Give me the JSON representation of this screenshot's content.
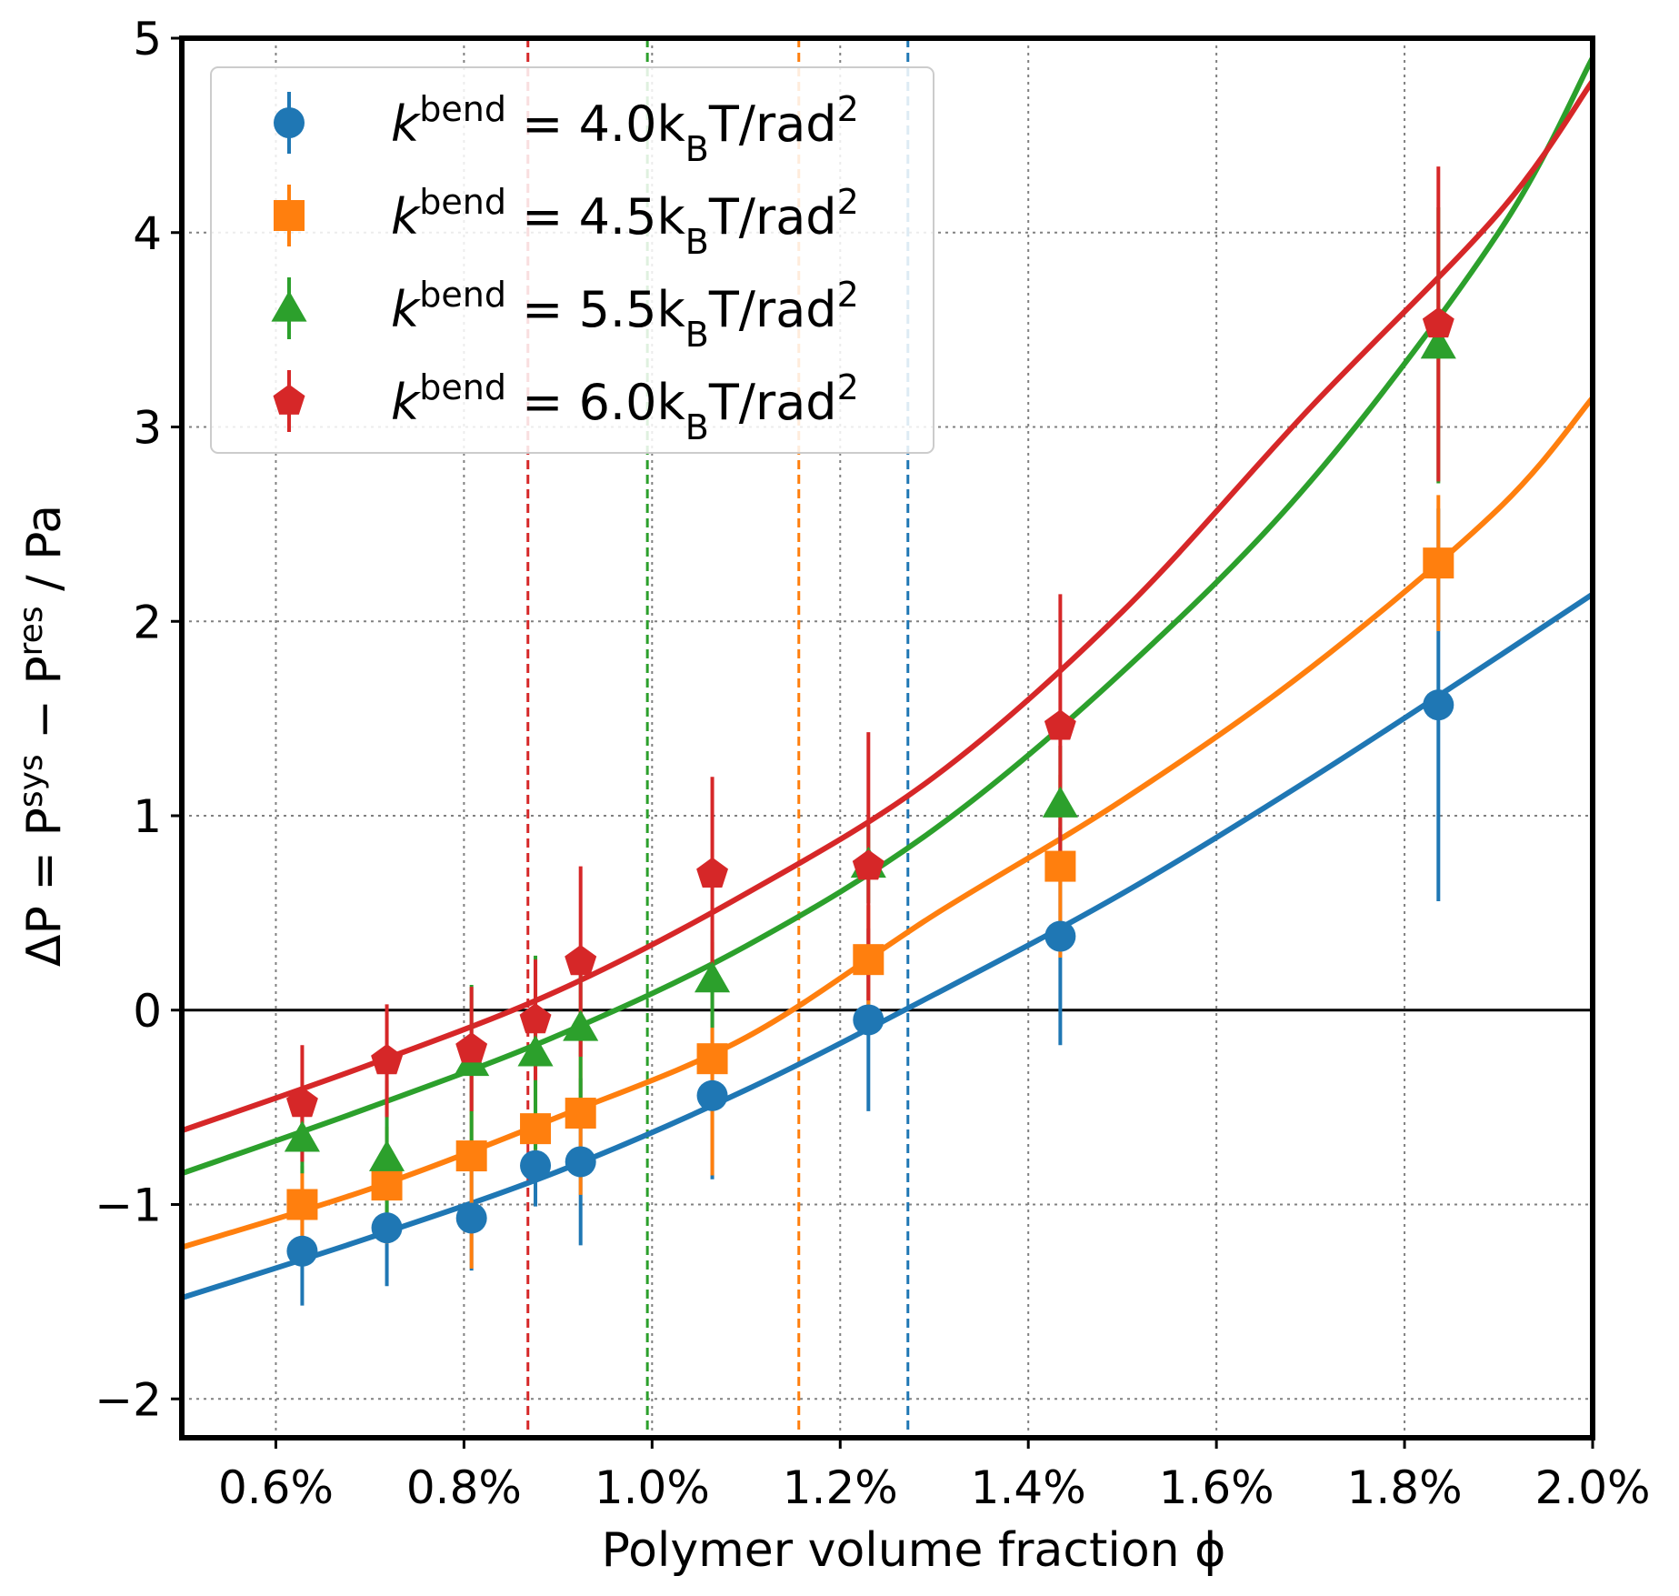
{
  "chart_data": {
    "type": "scatter",
    "title": "",
    "xlabel": "Polymer volume fraction ϕ",
    "ylabel_parts": [
      "ΔP = P",
      "sys",
      " − P",
      "res",
      " / Pa"
    ],
    "xlim": [
      0.5,
      2.0
    ],
    "ylim": [
      -2.2,
      5.0
    ],
    "x_ticks": [
      0.6,
      0.8,
      1.0,
      1.2,
      1.4,
      1.6,
      1.8,
      2.0
    ],
    "x_tick_labels": [
      "0.6%",
      "0.8%",
      "1.0%",
      "1.2%",
      "1.4%",
      "1.6%",
      "1.8%",
      "2.0%"
    ],
    "y_ticks": [
      -2,
      -1,
      0,
      1,
      2,
      3,
      4,
      5
    ],
    "y_tick_labels": [
      "−2",
      "−1",
      "0",
      "1",
      "2",
      "3",
      "4",
      "5"
    ],
    "grid": true,
    "legend_position": "top-left",
    "series": [
      {
        "name": "k^bend = 4.0 k_B T/rad^2",
        "legend": {
          "pre": "k",
          "sup": "bend",
          "mid": " = 4.0k",
          "sub": "B",
          "post": "T/rad",
          "sup2": "2"
        },
        "marker": "circle",
        "color": "#1f77b4",
        "x": [
          0.628,
          0.718,
          0.808,
          0.876,
          0.924,
          1.064,
          1.23,
          1.434,
          1.836
        ],
        "y": [
          -1.24,
          -1.12,
          -1.07,
          -0.8,
          -0.78,
          -0.44,
          -0.05,
          0.38,
          1.57
        ],
        "err": [
          0.28,
          0.3,
          0.27,
          0.21,
          0.43,
          0.43,
          0.47,
          0.56,
          1.01
        ],
        "fit_x": [
          0.5,
          0.7,
          0.9,
          1.1,
          1.3,
          1.5,
          1.7,
          1.9,
          2.0
        ],
        "fit_y": [
          -1.48,
          -1.17,
          -0.83,
          -0.41,
          0.08,
          0.6,
          1.19,
          1.82,
          2.14
        ],
        "zero_crossing": 1.272
      },
      {
        "name": "k^bend = 4.5 k_B T/rad^2",
        "legend": {
          "pre": "k",
          "sup": "bend",
          "mid": " = 4.5k",
          "sub": "B",
          "post": "T/rad",
          "sup2": "2"
        },
        "marker": "square",
        "color": "#ff7f0e",
        "x": [
          0.628,
          0.718,
          0.808,
          0.876,
          0.924,
          1.064,
          1.23,
          1.434,
          1.836
        ],
        "y": [
          -1.0,
          -0.9,
          -0.75,
          -0.61,
          -0.53,
          -0.25,
          0.26,
          0.74,
          2.3
        ],
        "err": [
          0.2,
          0.3,
          0.58,
          0.25,
          0.42,
          0.6,
          0.28,
          0.47,
          0.35
        ],
        "fit_x": [
          0.5,
          0.7,
          0.9,
          1.1,
          1.3,
          1.5,
          1.7,
          1.9,
          2.0
        ],
        "fit_y": [
          -1.22,
          -0.92,
          -0.55,
          -0.14,
          0.49,
          1.08,
          1.76,
          2.58,
          3.15
        ],
        "zero_crossing": 1.156
      },
      {
        "name": "k^bend = 5.5 k_B T/rad^2",
        "legend": {
          "pre": "k",
          "sup": "bend",
          "mid": " = 5.5k",
          "sub": "B",
          "post": "T/rad",
          "sup2": "2"
        },
        "marker": "triangle",
        "color": "#2ca02c",
        "x": [
          0.628,
          0.718,
          0.808,
          0.876,
          0.924,
          1.064,
          1.23,
          1.434,
          1.836
        ],
        "y": [
          -0.66,
          -0.76,
          -0.27,
          -0.22,
          -0.09,
          0.16,
          0.75,
          1.06,
          3.42
        ],
        "err": [
          0.18,
          0.4,
          0.4,
          0.5,
          0.41,
          0.25,
          0.2,
          0.3,
          0.71
        ],
        "fit_x": [
          0.5,
          0.7,
          0.9,
          1.1,
          1.3,
          1.5,
          1.7,
          1.9,
          2.0
        ],
        "fit_y": [
          -0.84,
          -0.5,
          -0.13,
          0.33,
          0.93,
          1.74,
          2.72,
          4.0,
          4.9
        ],
        "zero_crossing": 0.995
      },
      {
        "name": "k^bend = 6.0 k_B T/rad^2",
        "legend": {
          "pre": "k",
          "sup": "bend",
          "mid": " = 6.0k",
          "sub": "B",
          "post": "T/rad",
          "sup2": "2"
        },
        "marker": "pentagon",
        "color": "#d62728",
        "x": [
          0.628,
          0.718,
          0.808,
          0.876,
          0.924,
          1.064,
          1.23,
          1.434,
          1.836
        ],
        "y": [
          -0.48,
          -0.26,
          -0.2,
          -0.05,
          0.25,
          0.7,
          0.74,
          1.46,
          3.53
        ],
        "err": [
          0.3,
          0.29,
          0.32,
          0.31,
          0.49,
          0.5,
          0.69,
          0.68,
          0.81
        ],
        "fit_x": [
          0.5,
          0.7,
          0.9,
          1.1,
          1.3,
          1.5,
          1.7,
          1.9,
          2.0
        ],
        "fit_y": [
          -0.62,
          -0.28,
          0.1,
          0.6,
          1.2,
          2.05,
          3.1,
          4.1,
          4.78
        ],
        "zero_crossing": 0.868
      }
    ]
  }
}
